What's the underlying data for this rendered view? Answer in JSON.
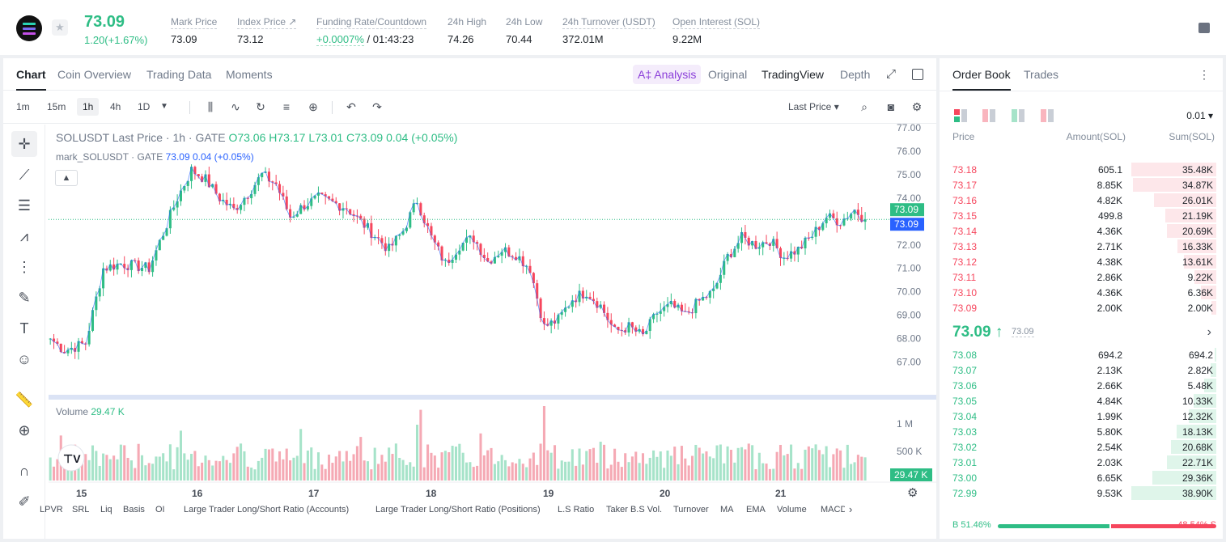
{
  "header": {
    "symbol_price": "73.09",
    "change": "1.20(+1.67%)",
    "stats": [
      {
        "label": "Mark Price",
        "value": "73.09"
      },
      {
        "label": "Index Price ↗",
        "value": "73.12"
      },
      {
        "label": "Funding Rate/Countdown",
        "value": "+0.0007%",
        "value2": " / 01:43:23"
      },
      {
        "label": "24h High",
        "value": "74.26"
      },
      {
        "label": "24h Low",
        "value": "70.44"
      },
      {
        "label": "24h Turnover (USDT)",
        "value": "372.01M"
      },
      {
        "label": "Open Interest (SOL)",
        "value": "9.22M"
      }
    ]
  },
  "chart_tabs": [
    "Chart",
    "Coin Overview",
    "Trading Data",
    "Moments"
  ],
  "chart_modes": {
    "ai": "A‡ Analysis",
    "original": "Original",
    "tradingview": "TradingView",
    "depth": "Depth"
  },
  "timeframes": [
    "1m",
    "15m",
    "1h",
    "4h",
    "1D"
  ],
  "price_source": "Last Price ▾",
  "legend": {
    "title": "SOLUSDT Last Price · 1h · GATE",
    "o": "O73.06",
    "h": "H73.17",
    "l": "L73.01",
    "c": "C73.09",
    "chg": "0.04 (+0.05%)",
    "mark": "mark_SOLUSDT · GATE",
    "mark_val": "73.09",
    "mark_chg": "0.04 (+0.05%)",
    "volume_label": "Volume",
    "volume_val": "29.47 K"
  },
  "chart_data": {
    "type": "candlestick",
    "x_ticks": [
      "15",
      "16",
      "17",
      "18",
      "19",
      "20",
      "21"
    ],
    "y_ticks": [
      "77.00",
      "76.00",
      "75.00",
      "74.00",
      "73.00",
      "72.00",
      "71.00",
      "70.00",
      "69.00",
      "68.00",
      "67.00"
    ],
    "y_range": [
      66.5,
      77.0
    ],
    "close_anchors": [
      [
        0,
        68.0
      ],
      [
        4,
        67.5
      ],
      [
        10,
        67.8
      ],
      [
        15,
        71.0
      ],
      [
        20,
        71.2
      ],
      [
        28,
        71.0
      ],
      [
        32,
        72.5
      ],
      [
        36,
        74.0
      ],
      [
        40,
        75.2
      ],
      [
        44,
        74.8
      ],
      [
        48,
        74.0
      ],
      [
        52,
        73.5
      ],
      [
        56,
        74.2
      ],
      [
        60,
        75.0
      ],
      [
        64,
        74.6
      ],
      [
        68,
        73.2
      ],
      [
        72,
        73.7
      ],
      [
        76,
        74.0
      ],
      [
        80,
        73.8
      ],
      [
        84,
        73.6
      ],
      [
        88,
        73.0
      ],
      [
        92,
        72.4
      ],
      [
        96,
        71.8
      ],
      [
        100,
        72.6
      ],
      [
        104,
        73.9
      ],
      [
        108,
        72.3
      ],
      [
        112,
        71.2
      ],
      [
        116,
        72.0
      ],
      [
        120,
        72.3
      ],
      [
        124,
        71.3
      ],
      [
        128,
        71.8
      ],
      [
        132,
        71.6
      ],
      [
        136,
        71.0
      ],
      [
        140,
        68.5
      ],
      [
        144,
        68.8
      ],
      [
        148,
        69.7
      ],
      [
        152,
        70.0
      ],
      [
        156,
        69.4
      ],
      [
        160,
        68.3
      ],
      [
        164,
        68.5
      ],
      [
        168,
        68.1
      ],
      [
        172,
        69.1
      ],
      [
        176,
        69.4
      ],
      [
        180,
        69.0
      ],
      [
        184,
        69.6
      ],
      [
        188,
        70.0
      ],
      [
        192,
        71.5
      ],
      [
        196,
        72.3
      ],
      [
        200,
        72.0
      ],
      [
        204,
        72.2
      ],
      [
        208,
        71.5
      ],
      [
        212,
        71.8
      ],
      [
        216,
        72.4
      ],
      [
        220,
        73.2
      ],
      [
        224,
        73.0
      ],
      [
        228,
        73.5
      ],
      [
        231,
        73.09
      ]
    ],
    "current_price": 73.09,
    "volume_max": 1200000,
    "volume_ticks": [
      "1 M",
      "500 K"
    ],
    "volume_current": "29.47 K"
  },
  "bottom_indicators": [
    "LPVR",
    "SRL",
    "Liq",
    "Basis",
    "OI",
    "Large Trader Long/Short Ratio (Accounts)",
    "Large Trader Long/Short Ratio (Positions)",
    "L.S Ratio",
    "Taker B.S Vol.",
    "Turnover",
    "MA",
    "EMA",
    "Volume",
    "MACD"
  ],
  "order_book": {
    "tabs": [
      "Order Book",
      "Trades"
    ],
    "precision": "0.01 ▾",
    "headers": [
      "Price",
      "Amount(SOL)",
      "Sum(SOL)"
    ],
    "asks": [
      [
        "73.18",
        "605.1",
        "35.48K",
        1.0
      ],
      [
        "73.17",
        "8.85K",
        "34.87K",
        0.98
      ],
      [
        "73.16",
        "4.82K",
        "26.01K",
        0.73
      ],
      [
        "73.15",
        "499.8",
        "21.19K",
        0.6
      ],
      [
        "73.14",
        "4.36K",
        "20.69K",
        0.58
      ],
      [
        "73.13",
        "2.71K",
        "16.33K",
        0.46
      ],
      [
        "73.12",
        "4.38K",
        "13.61K",
        0.38
      ],
      [
        "73.11",
        "2.86K",
        "9.22K",
        0.26
      ],
      [
        "73.10",
        "4.36K",
        "6.36K",
        0.18
      ],
      [
        "73.09",
        "2.00K",
        "2.00K",
        0.06
      ]
    ],
    "mid_price": "73.09 ↑",
    "mid_mark": "73.09",
    "bids": [
      [
        "73.08",
        "694.2",
        "694.2",
        0.02
      ],
      [
        "73.07",
        "2.13K",
        "2.82K",
        0.07
      ],
      [
        "73.06",
        "2.66K",
        "5.48K",
        0.14
      ],
      [
        "73.05",
        "4.84K",
        "10.33K",
        0.27
      ],
      [
        "73.04",
        "1.99K",
        "12.32K",
        0.32
      ],
      [
        "73.03",
        "5.80K",
        "18.13K",
        0.47
      ],
      [
        "73.02",
        "2.54K",
        "20.68K",
        0.53
      ],
      [
        "73.01",
        "2.03K",
        "22.71K",
        0.58
      ],
      [
        "73.00",
        "6.65K",
        "29.36K",
        0.75
      ],
      [
        "72.99",
        "9.53K",
        "38.90K",
        1.0
      ]
    ],
    "buy_ratio": "B 51.46%",
    "sell_ratio": "48.54% S",
    "buy_fraction": 0.5146
  },
  "colors": {
    "up": "#2ebd85",
    "down": "#f6465d"
  }
}
